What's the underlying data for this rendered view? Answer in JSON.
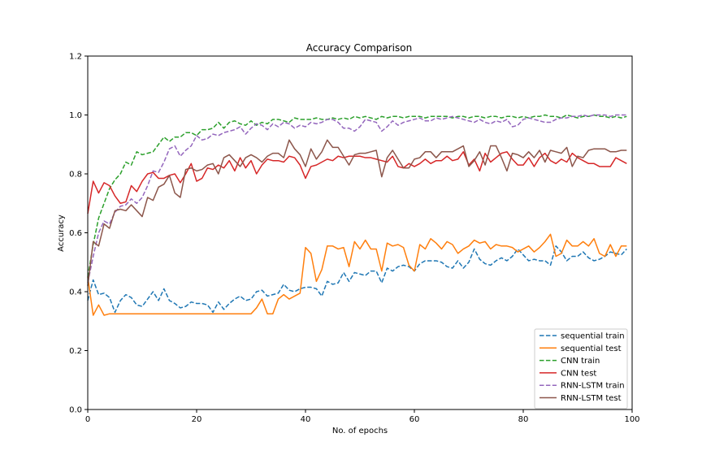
{
  "chart_data": {
    "type": "line",
    "title": "Accuracy Comparison",
    "xlabel": "No. of epochs",
    "ylabel": "Accuracy",
    "xlim": [
      0,
      100
    ],
    "ylim": [
      0.0,
      1.2
    ],
    "xticks": [
      0,
      20,
      40,
      60,
      80,
      100
    ],
    "yticks": [
      0.0,
      0.2,
      0.4,
      0.6,
      0.8,
      1.0,
      1.2
    ],
    "grid": false,
    "legend_position": "lower-right",
    "x": [
      0,
      1,
      2,
      3,
      4,
      5,
      6,
      7,
      8,
      9,
      10,
      11,
      12,
      13,
      14,
      15,
      16,
      17,
      18,
      19,
      20,
      21,
      22,
      23,
      24,
      25,
      26,
      27,
      28,
      29,
      30,
      31,
      32,
      33,
      34,
      35,
      36,
      37,
      38,
      39,
      40,
      41,
      42,
      43,
      44,
      45,
      46,
      47,
      48,
      49,
      50,
      51,
      52,
      53,
      54,
      55,
      56,
      57,
      58,
      59,
      60,
      61,
      62,
      63,
      64,
      65,
      66,
      67,
      68,
      69,
      70,
      71,
      72,
      73,
      74,
      75,
      76,
      77,
      78,
      79,
      80,
      81,
      82,
      83,
      84,
      85,
      86,
      87,
      88,
      89,
      90,
      91,
      92,
      93,
      94,
      95,
      96,
      97,
      98,
      99
    ],
    "series": [
      {
        "name": "sequential train",
        "color": "#1f77b4",
        "dashed": true,
        "values": [
          0.37,
          0.44,
          0.39,
          0.395,
          0.38,
          0.33,
          0.37,
          0.39,
          0.38,
          0.355,
          0.35,
          0.375,
          0.4,
          0.37,
          0.41,
          0.37,
          0.36,
          0.345,
          0.35,
          0.365,
          0.36,
          0.36,
          0.355,
          0.33,
          0.365,
          0.34,
          0.36,
          0.375,
          0.385,
          0.37,
          0.375,
          0.4,
          0.405,
          0.385,
          0.39,
          0.395,
          0.425,
          0.405,
          0.4,
          0.41,
          0.415,
          0.415,
          0.41,
          0.385,
          0.435,
          0.425,
          0.43,
          0.465,
          0.435,
          0.465,
          0.46,
          0.455,
          0.47,
          0.47,
          0.43,
          0.48,
          0.47,
          0.485,
          0.49,
          0.485,
          0.47,
          0.495,
          0.505,
          0.505,
          0.505,
          0.5,
          0.485,
          0.48,
          0.505,
          0.48,
          0.5,
          0.545,
          0.51,
          0.495,
          0.49,
          0.505,
          0.515,
          0.505,
          0.52,
          0.545,
          0.525,
          0.505,
          0.51,
          0.505,
          0.505,
          0.49,
          0.555,
          0.535,
          0.505,
          0.52,
          0.52,
          0.535,
          0.515,
          0.505,
          0.51,
          0.52,
          0.535,
          0.53,
          0.525,
          0.545
        ]
      },
      {
        "name": "sequential test",
        "color": "#ff7f0e",
        "dashed": false,
        "values": [
          0.45,
          0.32,
          0.355,
          0.32,
          0.325,
          0.325,
          0.325,
          0.325,
          0.325,
          0.325,
          0.325,
          0.325,
          0.325,
          0.325,
          0.325,
          0.325,
          0.325,
          0.325,
          0.325,
          0.325,
          0.325,
          0.325,
          0.325,
          0.325,
          0.325,
          0.325,
          0.325,
          0.325,
          0.325,
          0.325,
          0.325,
          0.345,
          0.375,
          0.325,
          0.325,
          0.375,
          0.39,
          0.375,
          0.385,
          0.395,
          0.55,
          0.53,
          0.435,
          0.475,
          0.555,
          0.555,
          0.545,
          0.55,
          0.485,
          0.57,
          0.545,
          0.575,
          0.545,
          0.545,
          0.47,
          0.565,
          0.555,
          0.56,
          0.55,
          0.49,
          0.47,
          0.56,
          0.545,
          0.58,
          0.565,
          0.545,
          0.57,
          0.56,
          0.53,
          0.545,
          0.555,
          0.575,
          0.565,
          0.57,
          0.545,
          0.56,
          0.555,
          0.555,
          0.55,
          0.535,
          0.545,
          0.555,
          0.535,
          0.55,
          0.57,
          0.595,
          0.52,
          0.53,
          0.575,
          0.555,
          0.555,
          0.57,
          0.555,
          0.58,
          0.53,
          0.52,
          0.56,
          0.52,
          0.555,
          0.555
        ]
      },
      {
        "name": "CNN train",
        "color": "#2ca02c",
        "dashed": true,
        "values": [
          0.45,
          0.56,
          0.65,
          0.7,
          0.75,
          0.78,
          0.8,
          0.84,
          0.83,
          0.875,
          0.865,
          0.87,
          0.875,
          0.9,
          0.925,
          0.91,
          0.925,
          0.925,
          0.94,
          0.94,
          0.93,
          0.95,
          0.95,
          0.955,
          0.975,
          0.955,
          0.975,
          0.98,
          0.97,
          0.965,
          0.98,
          0.965,
          0.975,
          0.97,
          0.985,
          0.985,
          0.98,
          0.975,
          0.99,
          0.985,
          0.985,
          0.985,
          0.99,
          0.985,
          0.985,
          0.99,
          0.985,
          0.99,
          0.985,
          0.995,
          0.99,
          0.995,
          0.99,
          0.985,
          0.995,
          0.99,
          0.995,
          0.995,
          0.99,
          0.995,
          0.995,
          0.995,
          0.99,
          0.995,
          0.995,
          0.995,
          0.995,
          0.99,
          0.995,
          0.995,
          0.99,
          0.995,
          0.995,
          0.99,
          0.995,
          0.995,
          0.99,
          0.995,
          0.995,
          0.99,
          0.995,
          0.99,
          0.995,
          0.995,
          1.0,
          0.995,
          0.995,
          0.99,
          1.0,
          0.995,
          0.99,
          0.995,
          0.995,
          1.0,
          0.995,
          0.995,
          0.99,
          0.995,
          0.99,
          0.995
        ]
      },
      {
        "name": "CNN test",
        "color": "#d62728",
        "dashed": false,
        "values": [
          0.665,
          0.775,
          0.735,
          0.77,
          0.76,
          0.725,
          0.7,
          0.705,
          0.76,
          0.74,
          0.775,
          0.8,
          0.805,
          0.785,
          0.785,
          0.795,
          0.8,
          0.77,
          0.8,
          0.835,
          0.775,
          0.785,
          0.82,
          0.815,
          0.83,
          0.82,
          0.845,
          0.81,
          0.855,
          0.82,
          0.845,
          0.8,
          0.83,
          0.85,
          0.845,
          0.845,
          0.84,
          0.86,
          0.855,
          0.83,
          0.785,
          0.825,
          0.83,
          0.84,
          0.85,
          0.845,
          0.86,
          0.855,
          0.86,
          0.86,
          0.86,
          0.855,
          0.855,
          0.85,
          0.845,
          0.84,
          0.86,
          0.825,
          0.82,
          0.835,
          0.825,
          0.835,
          0.85,
          0.835,
          0.845,
          0.845,
          0.86,
          0.845,
          0.85,
          0.875,
          0.83,
          0.85,
          0.81,
          0.87,
          0.84,
          0.855,
          0.87,
          0.875,
          0.85,
          0.83,
          0.83,
          0.855,
          0.825,
          0.855,
          0.87,
          0.845,
          0.835,
          0.85,
          0.84,
          0.87,
          0.855,
          0.845,
          0.835,
          0.835,
          0.825,
          0.825,
          0.825,
          0.855,
          0.845,
          0.835
        ]
      },
      {
        "name": "RNN-LSTM train",
        "color": "#9467bd",
        "dashed": true,
        "values": [
          0.43,
          0.52,
          0.6,
          0.64,
          0.63,
          0.67,
          0.69,
          0.695,
          0.715,
          0.7,
          0.72,
          0.76,
          0.81,
          0.805,
          0.84,
          0.885,
          0.895,
          0.86,
          0.88,
          0.895,
          0.93,
          0.915,
          0.92,
          0.935,
          0.93,
          0.94,
          0.945,
          0.95,
          0.96,
          0.935,
          0.955,
          0.97,
          0.965,
          0.95,
          0.97,
          0.96,
          0.975,
          0.97,
          0.955,
          0.965,
          0.96,
          0.975,
          0.97,
          0.975,
          0.985,
          0.985,
          0.975,
          0.955,
          0.955,
          0.945,
          0.96,
          0.985,
          0.98,
          0.975,
          0.945,
          0.96,
          0.98,
          0.965,
          0.975,
          0.98,
          0.985,
          0.99,
          0.98,
          0.98,
          0.99,
          0.985,
          0.99,
          0.995,
          0.99,
          0.985,
          0.98,
          0.975,
          0.985,
          0.975,
          0.97,
          0.98,
          0.975,
          0.985,
          0.96,
          0.965,
          0.985,
          0.99,
          0.985,
          0.98,
          0.975,
          0.975,
          0.985,
          0.99,
          0.99,
          0.995,
          0.995,
          1.0,
          0.995,
          1.0,
          1.0,
          1.0,
          0.995,
          1.0,
          1.0,
          1.0
        ]
      },
      {
        "name": "RNN-LSTM test",
        "color": "#8c564b",
        "dashed": false,
        "values": [
          0.42,
          0.57,
          0.555,
          0.63,
          0.615,
          0.675,
          0.68,
          0.675,
          0.695,
          0.675,
          0.655,
          0.72,
          0.71,
          0.755,
          0.765,
          0.795,
          0.735,
          0.72,
          0.815,
          0.82,
          0.81,
          0.815,
          0.83,
          0.835,
          0.8,
          0.855,
          0.865,
          0.845,
          0.825,
          0.855,
          0.865,
          0.855,
          0.84,
          0.86,
          0.87,
          0.87,
          0.855,
          0.915,
          0.885,
          0.865,
          0.825,
          0.885,
          0.85,
          0.875,
          0.915,
          0.89,
          0.89,
          0.86,
          0.83,
          0.865,
          0.87,
          0.87,
          0.875,
          0.88,
          0.79,
          0.855,
          0.88,
          0.85,
          0.82,
          0.82,
          0.85,
          0.855,
          0.875,
          0.875,
          0.855,
          0.875,
          0.875,
          0.875,
          0.885,
          0.895,
          0.825,
          0.845,
          0.875,
          0.83,
          0.895,
          0.895,
          0.855,
          0.81,
          0.87,
          0.865,
          0.855,
          0.875,
          0.855,
          0.88,
          0.84,
          0.88,
          0.875,
          0.87,
          0.89,
          0.825,
          0.86,
          0.855,
          0.88,
          0.885,
          0.885,
          0.885,
          0.875,
          0.875,
          0.88,
          0.88
        ]
      }
    ]
  }
}
